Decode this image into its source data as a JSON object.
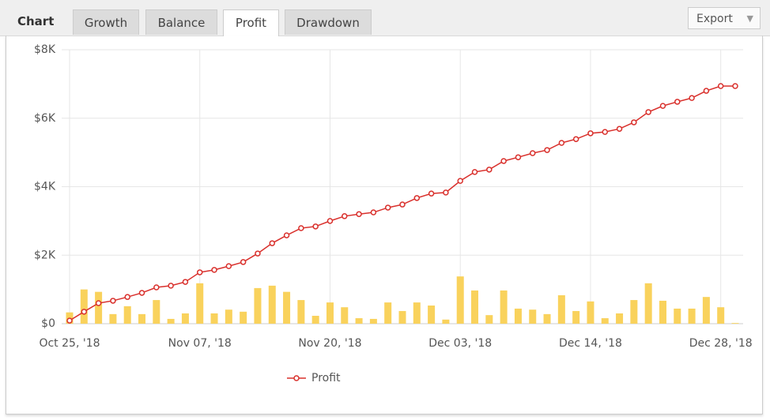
{
  "tabs": {
    "label": "Chart",
    "items": [
      "Growth",
      "Balance",
      "Profit",
      "Drawdown"
    ],
    "active": "Profit",
    "export": "Export"
  },
  "chart_data": {
    "type": "line",
    "categories": [
      "Oct 25, '18",
      null,
      null,
      null,
      null,
      null,
      null,
      null,
      null,
      "Nov 07, '18",
      null,
      null,
      null,
      null,
      null,
      null,
      null,
      null,
      "Nov 20, '18",
      null,
      null,
      null,
      null,
      null,
      null,
      null,
      null,
      "Dec 03, '18",
      null,
      null,
      null,
      null,
      null,
      null,
      null,
      null,
      "Dec 14, '18",
      null,
      null,
      null,
      null,
      null,
      null,
      null,
      null,
      "Dec 28, '18",
      null
    ],
    "series": [
      {
        "name": "Profit",
        "color": "#d9302c",
        "values": [
          90,
          350,
          600,
          670,
          780,
          900,
          1060,
          1110,
          1220,
          1500,
          1570,
          1680,
          1800,
          2050,
          2350,
          2580,
          2790,
          2840,
          3000,
          3140,
          3200,
          3250,
          3390,
          3480,
          3670,
          3800,
          3830,
          4170,
          4430,
          4500,
          4750,
          4860,
          4980,
          5070,
          5280,
          5390,
          5560,
          5600,
          5690,
          5880,
          6180,
          6360,
          6480,
          6590,
          6800,
          6940,
          6940
        ]
      },
      {
        "type": "bar",
        "color": "#f9d25c",
        "values": [
          330,
          1000,
          930,
          280,
          510,
          280,
          690,
          140,
          300,
          1180,
          300,
          410,
          350,
          1040,
          1110,
          930,
          690,
          230,
          620,
          480,
          160,
          140,
          620,
          370,
          620,
          530,
          120,
          1380,
          970,
          250,
          970,
          440,
          410,
          280,
          830,
          370,
          650,
          160,
          300,
          690,
          1180,
          670,
          440,
          440,
          780,
          480,
          20
        ]
      }
    ],
    "ylim": [
      0,
      8000
    ],
    "yticks": [
      {
        "value": 0,
        "label": "$0"
      },
      {
        "value": 2000,
        "label": "$2K"
      },
      {
        "value": 4000,
        "label": "$4K"
      },
      {
        "value": 6000,
        "label": "$6K"
      },
      {
        "value": 8000,
        "label": "$8K"
      }
    ],
    "grid": true
  }
}
